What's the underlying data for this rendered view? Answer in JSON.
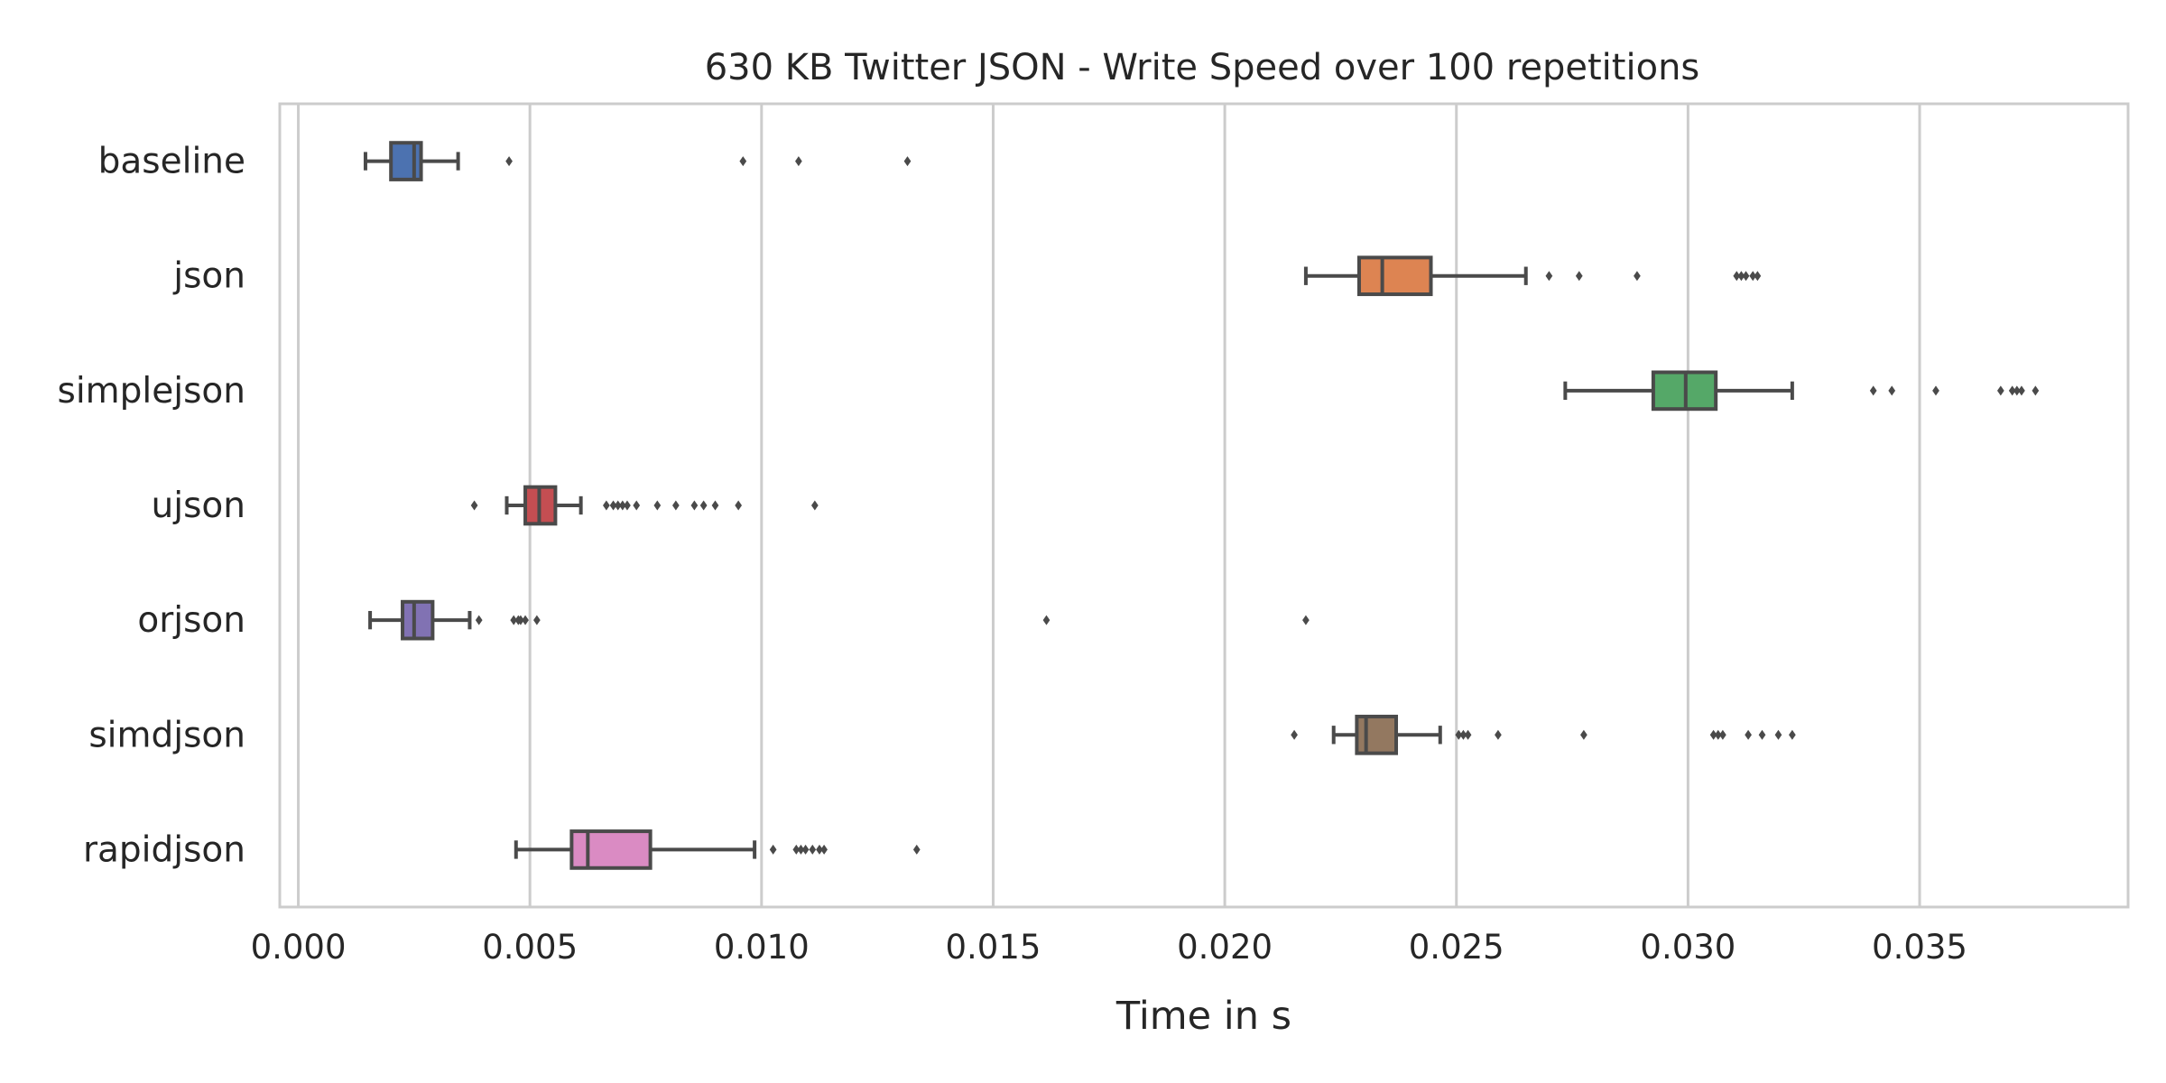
{
  "chart_data": {
    "type": "box",
    "orientation": "horizontal",
    "title": "630 KB Twitter JSON - Write Speed over 100 repetitions",
    "xlabel": "Time in s",
    "ylabel": "",
    "xlim": [
      -0.0004,
      0.0395
    ],
    "xticks": [
      0.0,
      0.005,
      0.01,
      0.015,
      0.02,
      0.025,
      0.03,
      0.035
    ],
    "xtick_labels": [
      "0.000",
      "0.005",
      "0.010",
      "0.015",
      "0.020",
      "0.025",
      "0.030",
      "0.035"
    ],
    "grid": true,
    "grid_axis": "x",
    "categories": [
      "baseline",
      "json",
      "simplejson",
      "ujson",
      "orjson",
      "simdjson",
      "rapidjson"
    ],
    "series": [
      {
        "category": "baseline",
        "color": "#4c72b0",
        "whisker_low": 0.00145,
        "q1": 0.002,
        "median": 0.0025,
        "q3": 0.00265,
        "whisker_high": 0.00345,
        "outliers": [
          0.00455,
          0.0096,
          0.0108,
          0.01315
        ]
      },
      {
        "category": "json",
        "color": "#dd8452",
        "whisker_low": 0.02175,
        "q1": 0.0229,
        "median": 0.0234,
        "q3": 0.02445,
        "whisker_high": 0.0265,
        "outliers": [
          0.027,
          0.02765,
          0.0289,
          0.03105,
          0.03115,
          0.03125,
          0.0314,
          0.0315
        ]
      },
      {
        "category": "simplejson",
        "color": "#55a868",
        "whisker_low": 0.02735,
        "q1": 0.02925,
        "median": 0.02995,
        "q3": 0.0306,
        "whisker_high": 0.03225,
        "outliers": [
          0.034,
          0.0344,
          0.03535,
          0.03675,
          0.037,
          0.0371,
          0.0372,
          0.0375
        ]
      },
      {
        "category": "ujson",
        "color": "#c44e52",
        "whisker_low": 0.0045,
        "q1": 0.0049,
        "median": 0.0052,
        "q3": 0.00555,
        "whisker_high": 0.0061,
        "outliers": [
          0.0038,
          0.00665,
          0.0068,
          0.0069,
          0.007,
          0.0071,
          0.0073,
          0.00775,
          0.00815,
          0.00855,
          0.00875,
          0.009,
          0.0095,
          0.01115
        ]
      },
      {
        "category": "orjson",
        "color": "#8172b3",
        "whisker_low": 0.00155,
        "q1": 0.00225,
        "median": 0.0025,
        "q3": 0.0029,
        "whisker_high": 0.0037,
        "outliers": [
          0.0039,
          0.00465,
          0.00475,
          0.0048,
          0.0049,
          0.00515,
          0.01615,
          0.02175
        ]
      },
      {
        "category": "simdjson",
        "color": "#937860",
        "whisker_low": 0.02235,
        "q1": 0.02285,
        "median": 0.02305,
        "q3": 0.0237,
        "whisker_high": 0.02465,
        "outliers": [
          0.0215,
          0.02505,
          0.02515,
          0.02525,
          0.0259,
          0.02775,
          0.03055,
          0.03065,
          0.03075,
          0.0313,
          0.0316,
          0.03195,
          0.03225
        ]
      },
      {
        "category": "rapidjson",
        "color": "#da8bc3",
        "whisker_low": 0.0047,
        "q1": 0.0059,
        "median": 0.00625,
        "q3": 0.0076,
        "whisker_high": 0.00985,
        "outliers": [
          0.01025,
          0.01075,
          0.01085,
          0.01095,
          0.0111,
          0.01125,
          0.01135,
          0.01335
        ]
      }
    ]
  }
}
